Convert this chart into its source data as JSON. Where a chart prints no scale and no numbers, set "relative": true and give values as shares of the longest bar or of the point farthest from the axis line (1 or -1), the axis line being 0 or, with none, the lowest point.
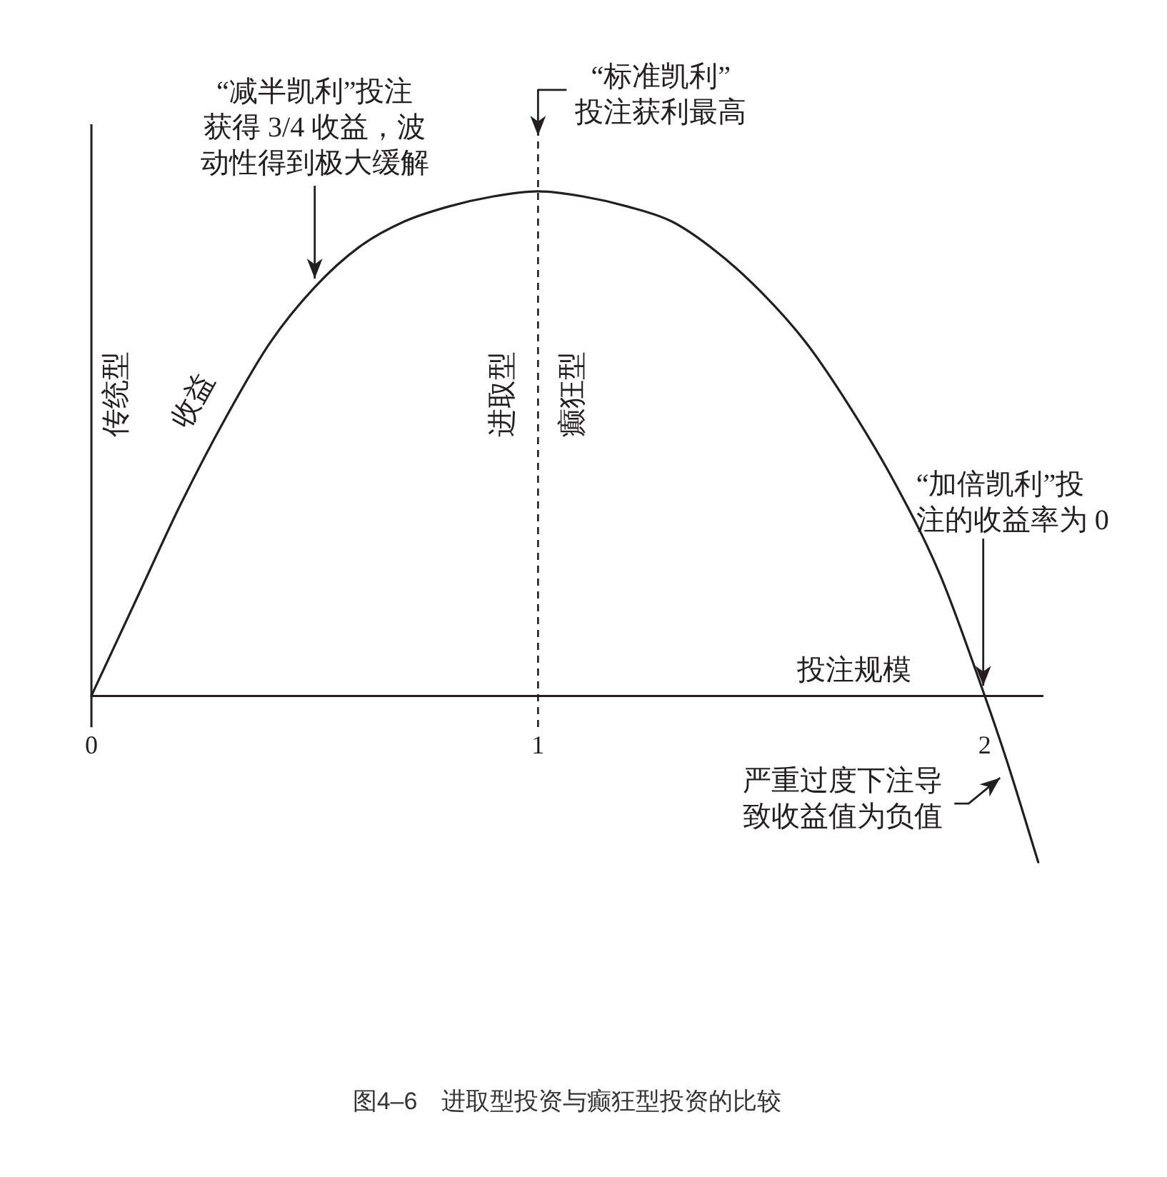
{
  "chart_data": {
    "type": "line",
    "title": "图4–6　进取型投资与癫狂型投资的比较",
    "xlabel": "投注规模",
    "relative": true,
    "x": [
      0,
      0.1,
      0.2,
      0.3,
      0.4,
      0.5,
      0.6,
      0.7,
      0.8,
      0.9,
      1,
      1.1,
      1.2,
      1.3,
      1.4,
      1.5,
      1.6,
      1.7,
      1.8,
      1.9,
      2,
      2.05,
      2.12
    ],
    "series": [
      {
        "name": "收益",
        "color": "#231f20",
        "values": [
          0,
          0.19,
          0.38,
          0.55,
          0.7,
          0.81,
          0.89,
          0.94,
          0.97,
          0.99,
          1,
          0.99,
          0.97,
          0.94,
          0.88,
          0.8,
          0.7,
          0.57,
          0.42,
          0.24,
          0,
          -0.13,
          -0.33
        ]
      }
    ],
    "xlim": [
      0,
      2.13
    ],
    "xticks": [
      0,
      1,
      2
    ],
    "ref_lines": [
      {
        "axis": "x",
        "value": 1,
        "line_style": "dashed",
        "color": "#231f20"
      }
    ],
    "annotations": [
      {
        "text": "“标准凯利”投注获利最高",
        "x": 1,
        "y": 1
      },
      {
        "text": "“减半凯利”投注获得 3/4 收益，波动性得到极大缓解",
        "x": 0.5,
        "y": 0.81
      },
      "传统型",
      "进取型",
      "癫狂型",
      {
        "text": "“加倍凯利”投注的收益率为 0",
        "x": 2,
        "y": 0
      },
      {
        "text": "严重过度下注导致收益值为负值",
        "x": 2.06,
        "y": -0.16
      }
    ]
  }
}
